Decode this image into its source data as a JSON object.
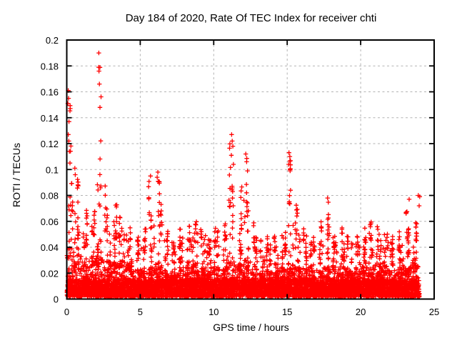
{
  "chart_data": {
    "type": "scatter",
    "title": "Day 184 of 2020, Rate Of TEC Index for receiver chti",
    "xlabel": "GPS time / hours",
    "ylabel": "ROTI / TECUs",
    "xlim": [
      0,
      25
    ],
    "ylim": [
      0,
      0.2
    ],
    "xtick_values": [
      0,
      5,
      10,
      15,
      20,
      25
    ],
    "xtick_labels": [
      "0",
      "5",
      "10",
      "15",
      "20",
      "25"
    ],
    "ytick_values": [
      0,
      0.02,
      0.04,
      0.06,
      0.08,
      0.1,
      0.12,
      0.14,
      0.16,
      0.18,
      0.2
    ],
    "ytick_labels": [
      "0",
      "0.02",
      "0.04",
      "0.06",
      "0.08",
      "0.1",
      "0.12",
      "0.14",
      "0.16",
      "0.18",
      "0.2"
    ],
    "grid": true,
    "legend": "none",
    "marker": "plus",
    "marker_color": "#ff0000",
    "background": "#ffffff",
    "border_color": "#000000",
    "grid_color": "#b3b3b3",
    "x_data_range": [
      0,
      24.1
    ],
    "density_model": {
      "description": "Dense band of ROTI 0-0.02 TECU across all 24h with mounds and vertical spike columns; bins give [bin_start_hour, dense_mound_top, sporadic_scatter_top, peak_max] per 0.5h",
      "bins": [
        [
          0.0,
          0.04,
          0.1,
          0.161
        ],
        [
          0.5,
          0.035,
          0.08,
          0.101
        ],
        [
          1.0,
          0.03,
          0.06,
          0.072
        ],
        [
          1.5,
          0.03,
          0.065,
          0.07
        ],
        [
          2.0,
          0.032,
          0.095,
          0.19
        ],
        [
          2.5,
          0.03,
          0.07,
          0.091
        ],
        [
          3.0,
          0.028,
          0.062,
          0.08
        ],
        [
          3.5,
          0.03,
          0.058,
          0.066
        ],
        [
          4.0,
          0.028,
          0.05,
          0.06
        ],
        [
          4.5,
          0.022,
          0.042,
          0.05
        ],
        [
          5.0,
          0.022,
          0.046,
          0.056
        ],
        [
          5.5,
          0.025,
          0.065,
          0.097
        ],
        [
          6.0,
          0.028,
          0.075,
          0.098
        ],
        [
          6.5,
          0.024,
          0.046,
          0.055
        ],
        [
          7.0,
          0.022,
          0.045,
          0.054
        ],
        [
          7.5,
          0.025,
          0.05,
          0.058
        ],
        [
          8.0,
          0.025,
          0.05,
          0.06
        ],
        [
          8.5,
          0.028,
          0.055,
          0.062
        ],
        [
          9.0,
          0.025,
          0.05,
          0.057
        ],
        [
          9.5,
          0.022,
          0.045,
          0.05
        ],
        [
          10.0,
          0.025,
          0.055,
          0.07
        ],
        [
          10.5,
          0.025,
          0.05,
          0.06
        ],
        [
          11.0,
          0.03,
          0.09,
          0.127
        ],
        [
          11.5,
          0.028,
          0.07,
          0.09
        ],
        [
          12.0,
          0.03,
          0.08,
          0.112
        ],
        [
          12.5,
          0.025,
          0.05,
          0.065
        ],
        [
          13.0,
          0.022,
          0.04,
          0.048
        ],
        [
          13.5,
          0.022,
          0.045,
          0.05
        ],
        [
          14.0,
          0.022,
          0.045,
          0.052
        ],
        [
          14.5,
          0.025,
          0.05,
          0.056
        ],
        [
          15.0,
          0.028,
          0.08,
          0.113
        ],
        [
          15.5,
          0.025,
          0.06,
          0.076
        ],
        [
          16.0,
          0.025,
          0.05,
          0.06
        ],
        [
          16.5,
          0.022,
          0.045,
          0.052
        ],
        [
          17.0,
          0.025,
          0.055,
          0.066
        ],
        [
          17.5,
          0.025,
          0.06,
          0.078
        ],
        [
          18.0,
          0.025,
          0.05,
          0.065
        ],
        [
          18.5,
          0.025,
          0.05,
          0.058
        ],
        [
          19.0,
          0.022,
          0.045,
          0.055
        ],
        [
          19.5,
          0.022,
          0.045,
          0.05
        ],
        [
          20.0,
          0.025,
          0.05,
          0.058
        ],
        [
          20.5,
          0.025,
          0.055,
          0.062
        ],
        [
          21.0,
          0.028,
          0.05,
          0.058
        ],
        [
          21.5,
          0.025,
          0.05,
          0.055
        ],
        [
          22.0,
          0.022,
          0.045,
          0.05
        ],
        [
          22.5,
          0.025,
          0.05,
          0.055
        ],
        [
          23.0,
          0.025,
          0.055,
          0.077
        ],
        [
          23.5,
          0.028,
          0.06,
          0.08
        ]
      ]
    },
    "outlier_points": [
      [
        0.08,
        0.151
      ],
      [
        0.1,
        0.161
      ],
      [
        0.12,
        0.155
      ],
      [
        0.15,
        0.137
      ],
      [
        0.1,
        0.127
      ],
      [
        0.14,
        0.122
      ],
      [
        0.18,
        0.114
      ],
      [
        0.22,
        0.105
      ],
      [
        2.18,
        0.19
      ],
      [
        2.17,
        0.179
      ],
      [
        2.19,
        0.176
      ],
      [
        2.22,
        0.166
      ],
      [
        2.26,
        0.148
      ],
      [
        0.55,
        0.101
      ],
      [
        0.58,
        0.096
      ],
      [
        5.7,
        0.095
      ],
      [
        6.15,
        0.094
      ],
      [
        6.2,
        0.098
      ],
      [
        6.22,
        0.091
      ],
      [
        11.22,
        0.127
      ],
      [
        11.26,
        0.122
      ],
      [
        11.3,
        0.118
      ],
      [
        11.2,
        0.111
      ],
      [
        11.34,
        0.104
      ],
      [
        12.18,
        0.112
      ],
      [
        12.24,
        0.106
      ],
      [
        12.3,
        0.099
      ],
      [
        15.12,
        0.113
      ],
      [
        15.18,
        0.11
      ],
      [
        15.1,
        0.104
      ],
      [
        15.2,
        0.099
      ],
      [
        17.75,
        0.078
      ],
      [
        23.3,
        0.077
      ],
      [
        23.92,
        0.08
      ],
      [
        24.02,
        0.079
      ],
      [
        23.98,
        0.072
      ]
    ]
  }
}
